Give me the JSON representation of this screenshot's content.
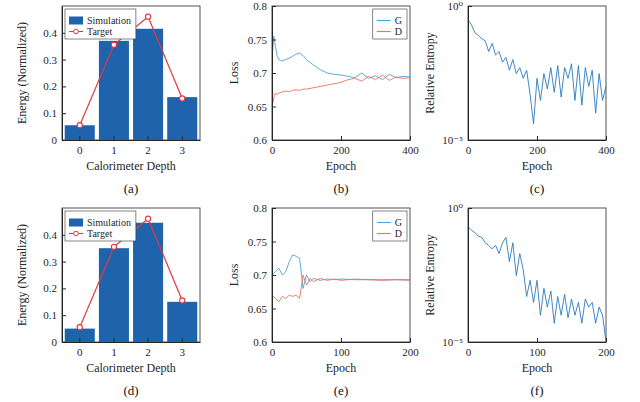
{
  "chart_data": [
    {
      "type": "bar",
      "caption": "(a)",
      "x_label": "Calorimeter Depth",
      "y_label": "Energy (Normalized)",
      "categories": [
        "0",
        "1",
        "2",
        "3"
      ],
      "series": [
        {
          "name": "Simulation",
          "type": "bar",
          "color": "#1f63ad",
          "values": [
            0.055,
            0.37,
            0.415,
            0.16
          ]
        },
        {
          "name": "Target",
          "type": "line",
          "color": "#e0393e",
          "marker": "circle",
          "values": [
            0.055,
            0.355,
            0.46,
            0.155
          ]
        }
      ],
      "ylim": [
        0,
        0.5
      ],
      "yticks": [
        0,
        0.1,
        0.2,
        0.3,
        0.4
      ],
      "legend": "northwest"
    },
    {
      "type": "line",
      "caption": "(b)",
      "x_label": "Epoch",
      "y_label": "Loss",
      "x": [
        0,
        5,
        10,
        15,
        20,
        30,
        40,
        50,
        60,
        70,
        80,
        90,
        100,
        120,
        140,
        160,
        180,
        200,
        220,
        240,
        260,
        280,
        300,
        320,
        340,
        360,
        380,
        400
      ],
      "series": [
        {
          "name": "G",
          "color": "#4ea1d8",
          "values": [
            0.72,
            0.755,
            0.74,
            0.725,
            0.72,
            0.718,
            0.72,
            0.722,
            0.725,
            0.728,
            0.73,
            0.726,
            0.72,
            0.712,
            0.705,
            0.7,
            0.698,
            0.697,
            0.695,
            0.693,
            0.7,
            0.692,
            0.696,
            0.69,
            0.698,
            0.693,
            0.695,
            0.694
          ]
        },
        {
          "name": "D",
          "color": "#f0705f",
          "values": [
            0.65,
            0.662,
            0.67,
            0.668,
            0.67,
            0.672,
            0.673,
            0.672,
            0.674,
            0.675,
            0.674,
            0.676,
            0.676,
            0.678,
            0.68,
            0.682,
            0.684,
            0.686,
            0.69,
            0.692,
            0.688,
            0.695,
            0.69,
            0.697,
            0.689,
            0.694,
            0.692,
            0.693
          ]
        }
      ],
      "xlim": [
        0,
        400
      ],
      "xticks": [
        0,
        200,
        400
      ],
      "ylim": [
        0.6,
        0.8
      ],
      "yticks": [
        0.6,
        0.65,
        0.7,
        0.75,
        0.8
      ],
      "legend": "northeast"
    },
    {
      "type": "line",
      "caption": "(c)",
      "x_label": "Epoch",
      "y_label": "Relative Entropy",
      "log": "y",
      "x": [
        0,
        10,
        20,
        30,
        40,
        50,
        60,
        70,
        80,
        90,
        100,
        110,
        120,
        130,
        140,
        150,
        160,
        170,
        180,
        190,
        200,
        210,
        220,
        230,
        240,
        250,
        260,
        270,
        280,
        290,
        300,
        310,
        320,
        330,
        340,
        350,
        360,
        370,
        380,
        390,
        400
      ],
      "series": [
        {
          "color": "#2b7bbd",
          "values": [
            0.3,
            0.2,
            0.1,
            0.08,
            0.06,
            0.05,
            0.02,
            0.04,
            0.015,
            0.02,
            0.008,
            0.012,
            0.004,
            0.01,
            0.003,
            0.005,
            0.002,
            0.004,
            0.0005,
            4e-05,
            0.002,
            0.0003,
            0.003,
            0.0008,
            0.005,
            0.0006,
            0.006,
            0.0004,
            0.005,
            0.002,
            0.007,
            0.0003,
            0.006,
            0.0002,
            0.005,
            0.001,
            0.004,
            0.0001,
            0.003,
            0.0003,
            0.001
          ]
        }
      ],
      "xlim": [
        0,
        400
      ],
      "xticks": [
        0,
        200,
        400
      ],
      "ylim": [
        1e-05,
        1
      ],
      "yticks": [
        {
          "value": 1e-05,
          "label": "10⁻⁵"
        },
        {
          "value": 1,
          "label": "10⁰"
        }
      ]
    },
    {
      "type": "bar",
      "caption": "(d)",
      "x_label": "Calorimeter Depth",
      "y_label": "Energy (Normalized)",
      "categories": [
        "0",
        "1",
        "2",
        "3"
      ],
      "series": [
        {
          "name": "Simulation",
          "type": "bar",
          "color": "#1f63ad",
          "values": [
            0.05,
            0.35,
            0.445,
            0.15
          ]
        },
        {
          "name": "Target",
          "type": "line",
          "color": "#e0393e",
          "marker": "circle",
          "values": [
            0.055,
            0.355,
            0.46,
            0.155
          ]
        }
      ],
      "ylim": [
        0,
        0.5
      ],
      "yticks": [
        0,
        0.1,
        0.2,
        0.3,
        0.4
      ],
      "legend": "northwest"
    },
    {
      "type": "line",
      "caption": "(e)",
      "x_label": "Epoch",
      "y_label": "Loss",
      "x": [
        0,
        5,
        10,
        15,
        20,
        25,
        30,
        35,
        40,
        45,
        50,
        55,
        60,
        70,
        80,
        90,
        100,
        120,
        140,
        160,
        180,
        200
      ],
      "series": [
        {
          "name": "G",
          "color": "#4ea1d8",
          "values": [
            0.7,
            0.705,
            0.71,
            0.7,
            0.705,
            0.72,
            0.73,
            0.728,
            0.725,
            0.68,
            0.7,
            0.69,
            0.695,
            0.692,
            0.694,
            0.693,
            0.694,
            0.693,
            0.693,
            0.693,
            0.693,
            0.693
          ]
        },
        {
          "name": "D",
          "color": "#f0705f",
          "values": [
            0.67,
            0.665,
            0.66,
            0.668,
            0.665,
            0.67,
            0.668,
            0.67,
            0.665,
            0.7,
            0.685,
            0.695,
            0.69,
            0.695,
            0.692,
            0.694,
            0.692,
            0.694,
            0.693,
            0.692,
            0.693,
            0.692
          ]
        }
      ],
      "xlim": [
        0,
        200
      ],
      "xticks": [
        0,
        100,
        200
      ],
      "ylim": [
        0.6,
        0.8
      ],
      "yticks": [
        0.6,
        0.65,
        0.7,
        0.75,
        0.8
      ],
      "legend": "northeast"
    },
    {
      "type": "line",
      "caption": "(f)",
      "x_label": "Epoch",
      "y_label": "Relative Entropy",
      "log": "y",
      "x": [
        0,
        5,
        10,
        15,
        20,
        25,
        30,
        35,
        40,
        45,
        50,
        55,
        60,
        65,
        70,
        75,
        80,
        85,
        90,
        95,
        100,
        105,
        110,
        115,
        120,
        125,
        130,
        135,
        140,
        145,
        150,
        155,
        160,
        165,
        170,
        175,
        180,
        185,
        190,
        195,
        200
      ],
      "series": [
        {
          "color": "#2b7bbd",
          "values": [
            0.2,
            0.15,
            0.12,
            0.09,
            0.08,
            0.05,
            0.04,
            0.03,
            0.04,
            0.02,
            0.05,
            0.08,
            0.01,
            0.05,
            0.003,
            0.02,
            0.005,
            0.0005,
            0.002,
            0.0003,
            0.002,
            0.0001,
            0.001,
            0.0002,
            0.0008,
            5e-05,
            0.0005,
            0.0001,
            0.0006,
            8e-05,
            0.0004,
            0.0001,
            0.0003,
            5e-05,
            0.0004,
            0.0002,
            0.0003,
            5e-05,
            0.0002,
            0.0001,
            1e-05
          ]
        }
      ],
      "xlim": [
        0,
        200
      ],
      "xticks": [
        0,
        100,
        200
      ],
      "ylim": [
        1e-05,
        1
      ],
      "yticks": [
        {
          "value": 1e-05,
          "label": "10⁻⁵"
        },
        {
          "value": 1,
          "label": "10⁰"
        }
      ]
    }
  ]
}
